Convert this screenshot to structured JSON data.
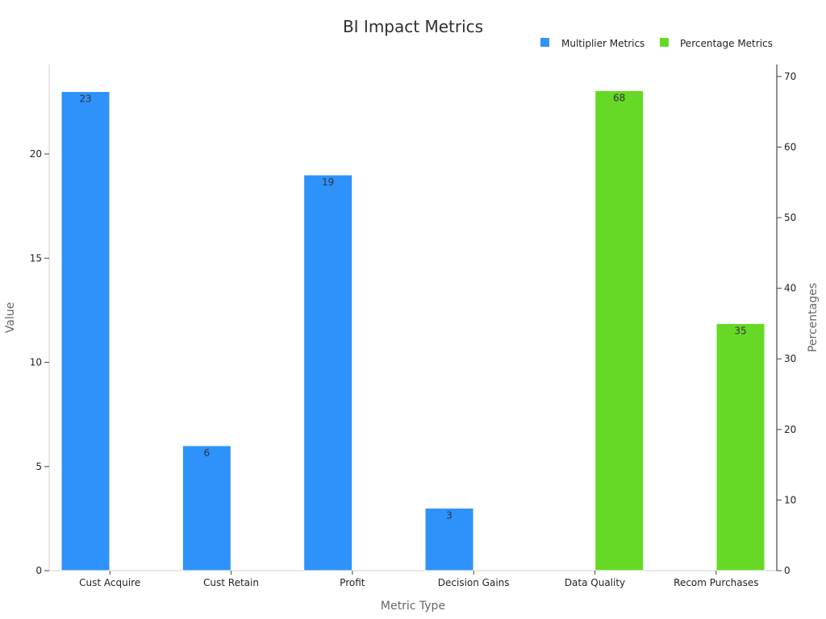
{
  "chart_data": {
    "type": "bar",
    "title": "BI Impact Metrics",
    "xlabel": "Metric Type",
    "ylabel": "Value",
    "y2label": "Percentages",
    "categories": [
      "Cust Acquire",
      "Cust Retain",
      "Profit",
      "Decision Gains",
      "Data Quality",
      "Recom Purchases"
    ],
    "ylim": [
      0,
      24.3
    ],
    "y2lim": [
      0,
      71.7
    ],
    "yticks": [
      0,
      5,
      10,
      15,
      20
    ],
    "y2ticks": [
      0,
      10,
      20,
      30,
      40,
      50,
      60,
      70
    ],
    "legend_position": "top-right",
    "series": [
      {
        "name": "Multiplier Metrics",
        "axis": "left",
        "color": "#2e92fa",
        "values": [
          23,
          6,
          19,
          3,
          null,
          null
        ],
        "labels": [
          "23",
          "6",
          "19",
          "3",
          "",
          ""
        ]
      },
      {
        "name": "Percentage Metrics",
        "axis": "right",
        "color": "#66d926",
        "values": [
          null,
          null,
          null,
          null,
          68,
          35
        ],
        "labels": [
          "",
          "",
          "",
          "",
          "68",
          "35"
        ]
      }
    ]
  }
}
